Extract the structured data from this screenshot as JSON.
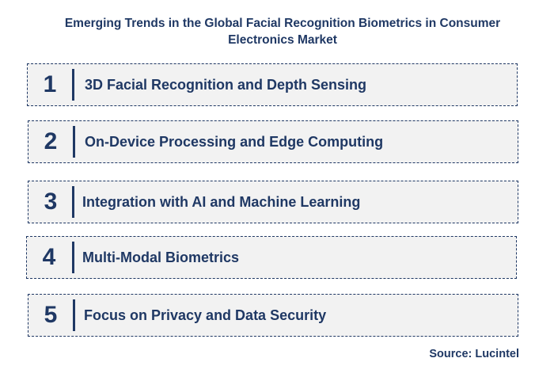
{
  "title": "Emerging Trends in the Global Facial Recognition Biometrics in Consumer Electronics Market",
  "trends": [
    {
      "number": "1",
      "label": "3D Facial Recognition and Depth Sensing"
    },
    {
      "number": "2",
      "label": "On-Device Processing and Edge Computing"
    },
    {
      "number": "3",
      "label": "Integration with AI and Machine Learning"
    },
    {
      "number": "4",
      "label": "Multi-Modal Biometrics"
    },
    {
      "number": "5",
      "label": "Focus on Privacy and Data Security"
    }
  ],
  "source": "Source: Lucintel",
  "colors": {
    "text": "#1f3864",
    "row_background": "#f2f2f2"
  }
}
